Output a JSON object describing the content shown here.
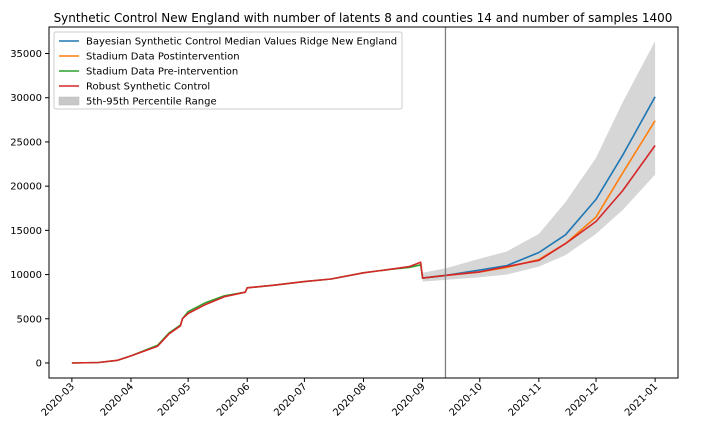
{
  "chart_data": {
    "type": "line",
    "title": "Synthetic Control New England with number of latents 8 and counties 14 and number of samples 1400",
    "xlabel": "",
    "ylabel": "",
    "xlim": [
      "2020-02-18",
      "2021-01-13"
    ],
    "ylim": [
      -1700,
      38000
    ],
    "x_ticks": [
      "2020-03",
      "2020-04",
      "2020-05",
      "2020-06",
      "2020-07",
      "2020-08",
      "2020-09",
      "2020-10",
      "2020-11",
      "2020-12",
      "2021-01"
    ],
    "y_ticks": [
      0,
      5000,
      10000,
      15000,
      20000,
      25000,
      30000,
      35000
    ],
    "y_tick_labels": [
      "0",
      "5000",
      "10000",
      "15000",
      "20000",
      "25000",
      "30000",
      "35000"
    ],
    "intervention_date": "2020-09-13",
    "legend_position": "upper-left",
    "grid": false,
    "series": [
      {
        "name": "Bayesian Synthetic Control Median Values Ridge New England",
        "color": "#1f77b4",
        "points": [
          [
            "2020-09-01",
            9600
          ],
          [
            "2020-09-13",
            9900
          ],
          [
            "2020-10-01",
            10500
          ],
          [
            "2020-10-15",
            11000
          ],
          [
            "2020-11-01",
            12500
          ],
          [
            "2020-11-15",
            14500
          ],
          [
            "2020-12-01",
            18500
          ],
          [
            "2020-12-15",
            23500
          ],
          [
            "2021-01-01",
            30100
          ]
        ]
      },
      {
        "name": "Stadium Data Postintervention",
        "color": "#ff7f0e",
        "points": [
          [
            "2020-09-13",
            9900
          ],
          [
            "2020-10-01",
            10300
          ],
          [
            "2020-10-15",
            10800
          ],
          [
            "2020-11-01",
            11700
          ],
          [
            "2020-11-15",
            13500
          ],
          [
            "2020-12-01",
            16500
          ],
          [
            "2020-12-15",
            21500
          ],
          [
            "2021-01-01",
            27400
          ]
        ]
      },
      {
        "name": "Stadium Data Pre-intervention",
        "color": "#2ca02c",
        "points": [
          [
            "2020-03-01",
            0
          ],
          [
            "2020-03-15",
            50
          ],
          [
            "2020-03-25",
            300
          ],
          [
            "2020-04-01",
            800
          ],
          [
            "2020-04-15",
            2000
          ],
          [
            "2020-04-21",
            3400
          ],
          [
            "2020-04-27",
            4300
          ],
          [
            "2020-04-28",
            5000
          ],
          [
            "2020-05-01",
            5800
          ],
          [
            "2020-05-10",
            6800
          ],
          [
            "2020-05-20",
            7600
          ],
          [
            "2020-05-31",
            8000
          ],
          [
            "2020-06-01",
            8500
          ],
          [
            "2020-06-15",
            8800
          ],
          [
            "2020-07-01",
            9200
          ],
          [
            "2020-07-15",
            9500
          ],
          [
            "2020-08-01",
            10200
          ],
          [
            "2020-08-15",
            10600
          ],
          [
            "2020-08-25",
            10800
          ],
          [
            "2020-08-31",
            11100
          ],
          [
            "2020-09-01",
            9600
          ],
          [
            "2020-09-13",
            9900
          ]
        ]
      },
      {
        "name": "Robust Synthetic Control",
        "color": "#d62728",
        "points": [
          [
            "2020-03-01",
            0
          ],
          [
            "2020-03-15",
            50
          ],
          [
            "2020-03-25",
            300
          ],
          [
            "2020-04-01",
            800
          ],
          [
            "2020-04-15",
            1900
          ],
          [
            "2020-04-21",
            3300
          ],
          [
            "2020-04-27",
            4200
          ],
          [
            "2020-04-28",
            5000
          ],
          [
            "2020-05-01",
            5600
          ],
          [
            "2020-05-10",
            6600
          ],
          [
            "2020-05-20",
            7500
          ],
          [
            "2020-05-31",
            8000
          ],
          [
            "2020-06-01",
            8500
          ],
          [
            "2020-06-15",
            8800
          ],
          [
            "2020-07-01",
            9200
          ],
          [
            "2020-07-15",
            9500
          ],
          [
            "2020-08-01",
            10200
          ],
          [
            "2020-08-15",
            10600
          ],
          [
            "2020-08-25",
            10900
          ],
          [
            "2020-08-31",
            11400
          ],
          [
            "2020-09-01",
            9600
          ],
          [
            "2020-09-13",
            9900
          ],
          [
            "2020-10-01",
            10300
          ],
          [
            "2020-10-15",
            10900
          ],
          [
            "2020-11-01",
            11600
          ],
          [
            "2020-11-15",
            13500
          ],
          [
            "2020-12-01",
            16000
          ],
          [
            "2020-12-15",
            19500
          ],
          [
            "2021-01-01",
            24600
          ]
        ]
      }
    ],
    "band": {
      "name": "5th-95th Percentile Range",
      "color": "#c8c8c8",
      "upper": [
        [
          "2020-09-01",
          10200
        ],
        [
          "2020-09-13",
          10700
        ],
        [
          "2020-10-01",
          11800
        ],
        [
          "2020-10-15",
          12600
        ],
        [
          "2020-11-01",
          14600
        ],
        [
          "2020-11-15",
          18200
        ],
        [
          "2020-12-01",
          23200
        ],
        [
          "2020-12-15",
          29500
        ],
        [
          "2021-01-01",
          36400
        ]
      ],
      "lower": [
        [
          "2020-09-01",
          9200
        ],
        [
          "2020-09-13",
          9400
        ],
        [
          "2020-10-01",
          9700
        ],
        [
          "2020-10-15",
          10000
        ],
        [
          "2020-11-01",
          10900
        ],
        [
          "2020-11-15",
          12200
        ],
        [
          "2020-12-01",
          14600
        ],
        [
          "2020-12-15",
          17300
        ],
        [
          "2021-01-01",
          21300
        ]
      ]
    }
  }
}
